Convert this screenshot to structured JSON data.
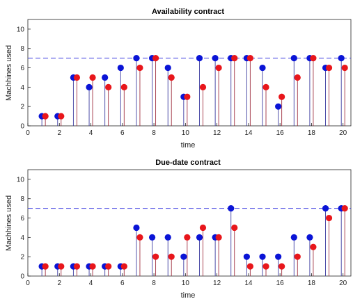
{
  "colors": {
    "series_a": "#0a14d6",
    "series_b": "#e8161b",
    "stem_a": "#3c3ca0",
    "stem_b": "#a03040",
    "limit": "#3a3ae0"
  },
  "chart_data": [
    {
      "type": "stem",
      "title": "Availability contract",
      "xlabel": "time",
      "ylabel": "Machhines used",
      "xlim": [
        0,
        20.5
      ],
      "ylim": [
        0,
        11
      ],
      "xticks": [
        0,
        2,
        4,
        6,
        8,
        10,
        12,
        14,
        16,
        18,
        20
      ],
      "yticks": [
        0,
        2,
        4,
        6,
        8,
        10
      ],
      "hline": 7,
      "x": [
        1,
        2,
        3,
        4,
        5,
        6,
        7,
        8,
        9,
        10,
        11,
        12,
        13,
        14,
        15,
        16,
        17,
        18,
        19,
        20
      ],
      "series": [
        {
          "values": [
            1,
            1,
            5,
            4,
            5,
            6,
            7,
            7,
            6,
            3,
            7,
            7,
            7,
            7,
            6,
            2,
            7,
            7,
            6,
            7
          ]
        },
        {
          "values": [
            1,
            1,
            5,
            5,
            4,
            4,
            6,
            7,
            5,
            3,
            4,
            6,
            7,
            7,
            4,
            3,
            5,
            7,
            6,
            6
          ]
        }
      ]
    },
    {
      "type": "stem",
      "title": "Due-date contract",
      "xlabel": "time",
      "ylabel": "Machhines used",
      "xlim": [
        0,
        20.5
      ],
      "ylim": [
        0,
        11
      ],
      "xticks": [
        0,
        2,
        4,
        6,
        8,
        10,
        12,
        14,
        16,
        18,
        20
      ],
      "yticks": [
        0,
        2,
        4,
        6,
        8,
        10
      ],
      "hline": 7,
      "x": [
        1,
        2,
        3,
        4,
        5,
        6,
        7,
        8,
        9,
        10,
        11,
        12,
        13,
        14,
        15,
        16,
        17,
        18,
        19,
        20
      ],
      "series": [
        {
          "values": [
            1,
            1,
            1,
            1,
            1,
            1,
            5,
            4,
            4,
            2,
            4,
            4,
            7,
            2,
            2,
            2,
            4,
            4,
            7,
            7
          ]
        },
        {
          "values": [
            1,
            1,
            1,
            1,
            1,
            1,
            4,
            2,
            2,
            4,
            5,
            4,
            5,
            1,
            1,
            1,
            2,
            3,
            6,
            7
          ]
        }
      ]
    }
  ]
}
